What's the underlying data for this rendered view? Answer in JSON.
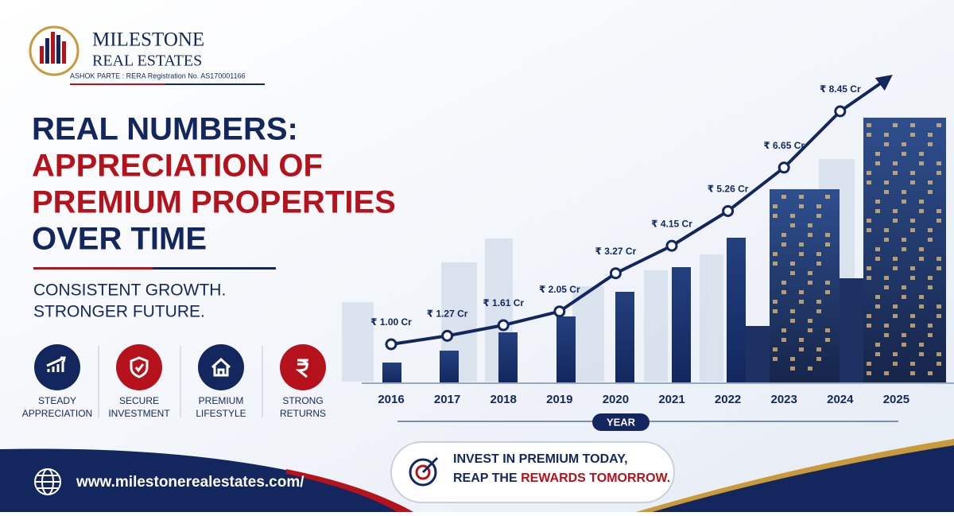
{
  "brand": {
    "name": "MILESTONE",
    "sub": "REAL ESTATES",
    "rera": "ASHOK PARTE : RERA Registration No. AS170001166"
  },
  "headline": {
    "lines": [
      {
        "text": "REAL NUMBERS:",
        "color": "#13275e"
      },
      {
        "text": "APPRECIATION OF",
        "color": "#b5121b"
      },
      {
        "text": "PREMIUM PROPERTIES",
        "color": "#b5121b"
      },
      {
        "text": "OVER TIME",
        "color": "#13275e"
      }
    ],
    "tagline": [
      "CONSISTENT GROWTH.",
      "STRONGER FUTURE."
    ]
  },
  "features": [
    {
      "lines": [
        "STEADY",
        "APPRECIATION"
      ],
      "color": "#13275e"
    },
    {
      "lines": [
        "SECURE",
        "INVESTMENT"
      ],
      "color": "#b5121b"
    },
    {
      "lines": [
        "PREMIUM",
        "LIFESTYLE"
      ],
      "color": "#13275e"
    },
    {
      "lines": [
        "STRONG",
        "RETURNS"
      ],
      "color": "#b5121b"
    }
  ],
  "chart_data": {
    "type": "line",
    "x": [
      "2016",
      "2017",
      "2018",
      "2019",
      "2020",
      "2021",
      "2022",
      "2023",
      "2024",
      "2025"
    ],
    "series": [
      {
        "name": null,
        "color": "#13275e",
        "values": [
          1.0,
          1.27,
          1.61,
          2.05,
          3.27,
          4.15,
          5.26,
          6.65,
          8.45,
          null
        ],
        "value_labels": [
          "₹ 1.00 Cr",
          "₹ 1.27 Cr",
          "₹ 1.61 Cr",
          "₹ 2.05 Cr",
          "₹ 3.27 Cr",
          "₹ 4.15 Cr",
          "₹ 5.26 Cr",
          "₹ 6.65 Cr",
          "₹ 8.45 Cr",
          null
        ]
      }
    ],
    "xlabel": "YEAR"
  },
  "cta": {
    "line1": "INVEST IN PREMIUM TODAY,",
    "line2a": "REAP THE ",
    "line2b": "REWARDS TOMORROW."
  },
  "footer": {
    "url": "www.milestonerealestates.com/"
  }
}
